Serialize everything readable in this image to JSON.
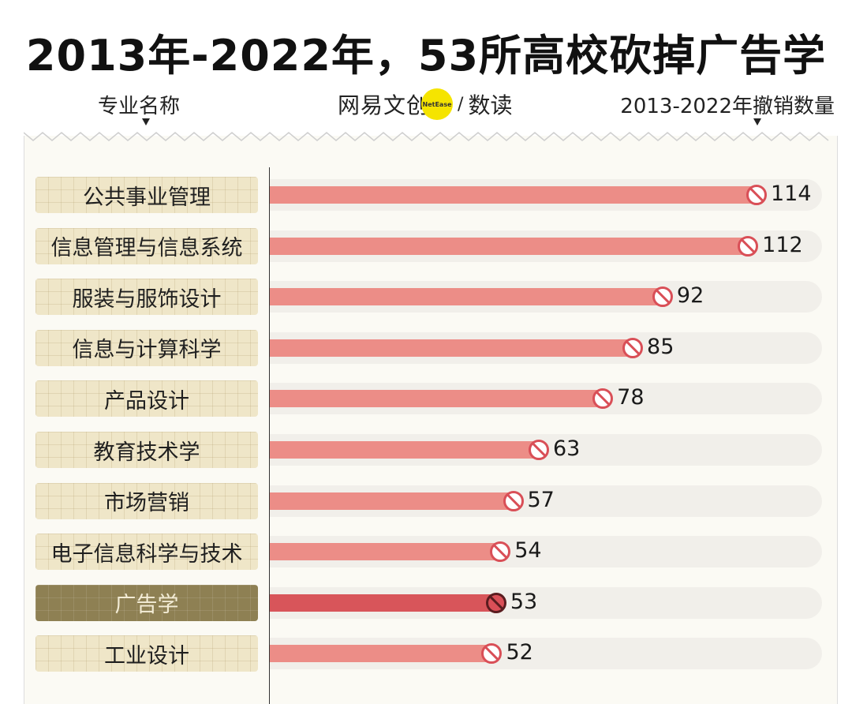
{
  "title": "2013年-2022年，53所高校砍掉广告学",
  "header": {
    "left_label": "专业名称",
    "right_label": "2013-2022年撤销数量",
    "logo_text": "网易文创",
    "logo_badge": "NetEase",
    "logo_sep": "/",
    "logo_suffix": "数读"
  },
  "chart_data": {
    "type": "bar",
    "orientation": "horizontal",
    "title": "2013年-2022年，53所高校砍掉广告学",
    "categories": [
      "公共事业管理",
      "信息管理与信息系统",
      "服装与服饰设计",
      "信息与计算科学",
      "产品设计",
      "教育技术学",
      "市场营销",
      "电子信息科学与技术",
      "广告学",
      "工业设计"
    ],
    "values": [
      114,
      112,
      92,
      85,
      78,
      63,
      57,
      54,
      53,
      52
    ],
    "highlight": "广告学",
    "xlim": [
      0,
      114
    ],
    "colors": {
      "bar": "#ec8d87",
      "bar_highlight": "#d8555a",
      "label_bg": "#efe6c8",
      "label_bg_highlight": "#8e8053",
      "icon": "#d94f57"
    }
  }
}
